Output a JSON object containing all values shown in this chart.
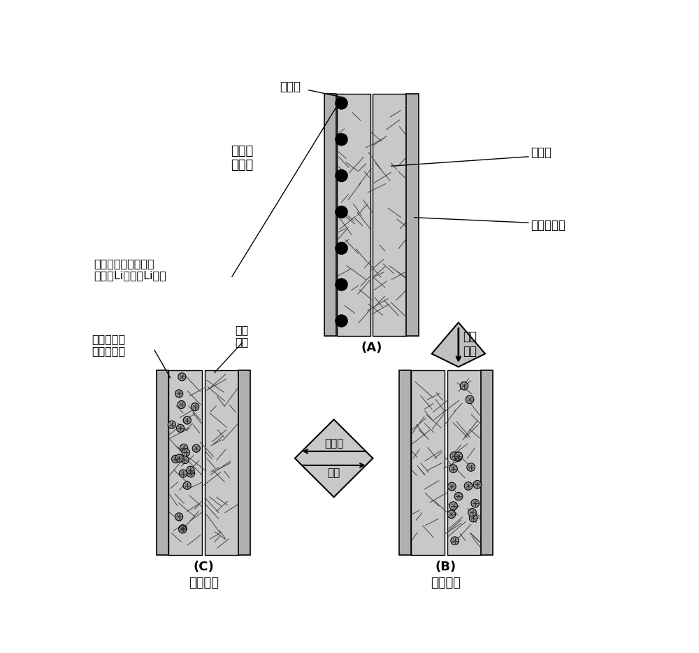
{
  "bg_color": "#ffffff",
  "label_A": "(A)",
  "label_B": "(B)",
  "label_C": "(C)",
  "text_before_discharge": "首次放\n电之前",
  "text_graphene1": "石墨烯",
  "text_graphene2": "石墨烯",
  "text_cathode_collector": "阴极集流体",
  "text_li_source": "锂离子源（例如表面\n稳定的Li颗粒或Li箔）",
  "text_first_discharge": "首次\n放电",
  "text_recharge": "再充电",
  "text_discharge": "放电",
  "text_charged_state": "充电状态",
  "text_discharged_state": "放电状态",
  "text_graphene_sheet": "石墨\n烯片",
  "text_li_trapped": "被石墨烯捕\n获的锂原子",
  "electrode_gray": "#b0b0b0",
  "network_gray": "#c8c8c8",
  "dark_gray": "#888888"
}
